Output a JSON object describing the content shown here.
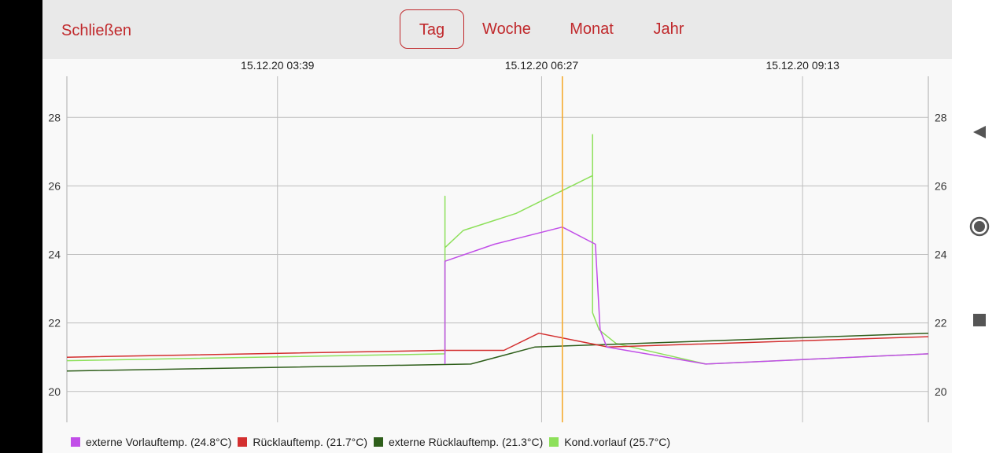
{
  "header": {
    "close_label": "Schließen",
    "tabs": [
      {
        "label": "Tag",
        "active": true
      },
      {
        "label": "Woche",
        "active": false
      },
      {
        "label": "Monat",
        "active": false
      },
      {
        "label": "Jahr",
        "active": false
      }
    ]
  },
  "nav_icons": [
    "back-icon",
    "home-icon",
    "recents-icon"
  ],
  "colors": {
    "accent": "#c0282b",
    "cursor_line": "#f5a623"
  },
  "chart_data": {
    "type": "line",
    "y_ticks": [
      20,
      22,
      24,
      26,
      28
    ],
    "ylim": [
      19.1,
      29.2
    ],
    "x_tick_labels": [
      "15.12.20 03:39",
      "15.12.20 06:27",
      "15.12.20 09:13"
    ],
    "x_tick_hours": [
      3.65,
      6.45,
      9.2167
    ],
    "xlim": [
      1.4167,
      10.55
    ],
    "cursor_hour": 6.67,
    "grid": true,
    "legend_position": "bottom",
    "series": [
      {
        "name": "externe Vorlauftemp. (24.8°C)",
        "color": "#c14ee8",
        "points": [
          [
            5.425,
            20.8
          ],
          [
            5.425,
            23.8
          ],
          [
            5.95,
            24.3
          ],
          [
            6.67,
            24.8
          ],
          [
            7.02,
            24.3
          ],
          [
            7.07,
            21.8
          ],
          [
            7.14,
            21.3
          ],
          [
            8.19,
            20.8
          ],
          [
            10.55,
            21.1
          ]
        ]
      },
      {
        "name": "Rücklauftemp. (21.7°C)",
        "color": "#d32f2f",
        "points": [
          [
            1.4167,
            21.0
          ],
          [
            5.4,
            21.2
          ],
          [
            6.05,
            21.2
          ],
          [
            6.42,
            21.7
          ],
          [
            7.15,
            21.3
          ],
          [
            10.55,
            21.6
          ]
        ]
      },
      {
        "name": "externe Rücklauftemp. (21.3°C)",
        "color": "#2e5e1a",
        "points": [
          [
            1.4167,
            20.6
          ],
          [
            5.7,
            20.8
          ],
          [
            6.38,
            21.3
          ],
          [
            10.55,
            21.7
          ]
        ]
      },
      {
        "name": "Kond.vorlauf (25.7°C)",
        "color": "#8de05a",
        "points": [
          [
            1.4167,
            20.9
          ],
          [
            5.425,
            21.1
          ],
          [
            5.425,
            25.7
          ],
          [
            5.425,
            24.2
          ],
          [
            5.62,
            24.7
          ],
          [
            6.18,
            25.2
          ],
          [
            6.99,
            26.3
          ],
          [
            6.99,
            27.5
          ],
          [
            6.99,
            22.3
          ],
          [
            7.06,
            21.8
          ],
          [
            7.24,
            21.4
          ],
          [
            8.19,
            20.8
          ],
          [
            10.55,
            21.1
          ]
        ]
      }
    ]
  }
}
